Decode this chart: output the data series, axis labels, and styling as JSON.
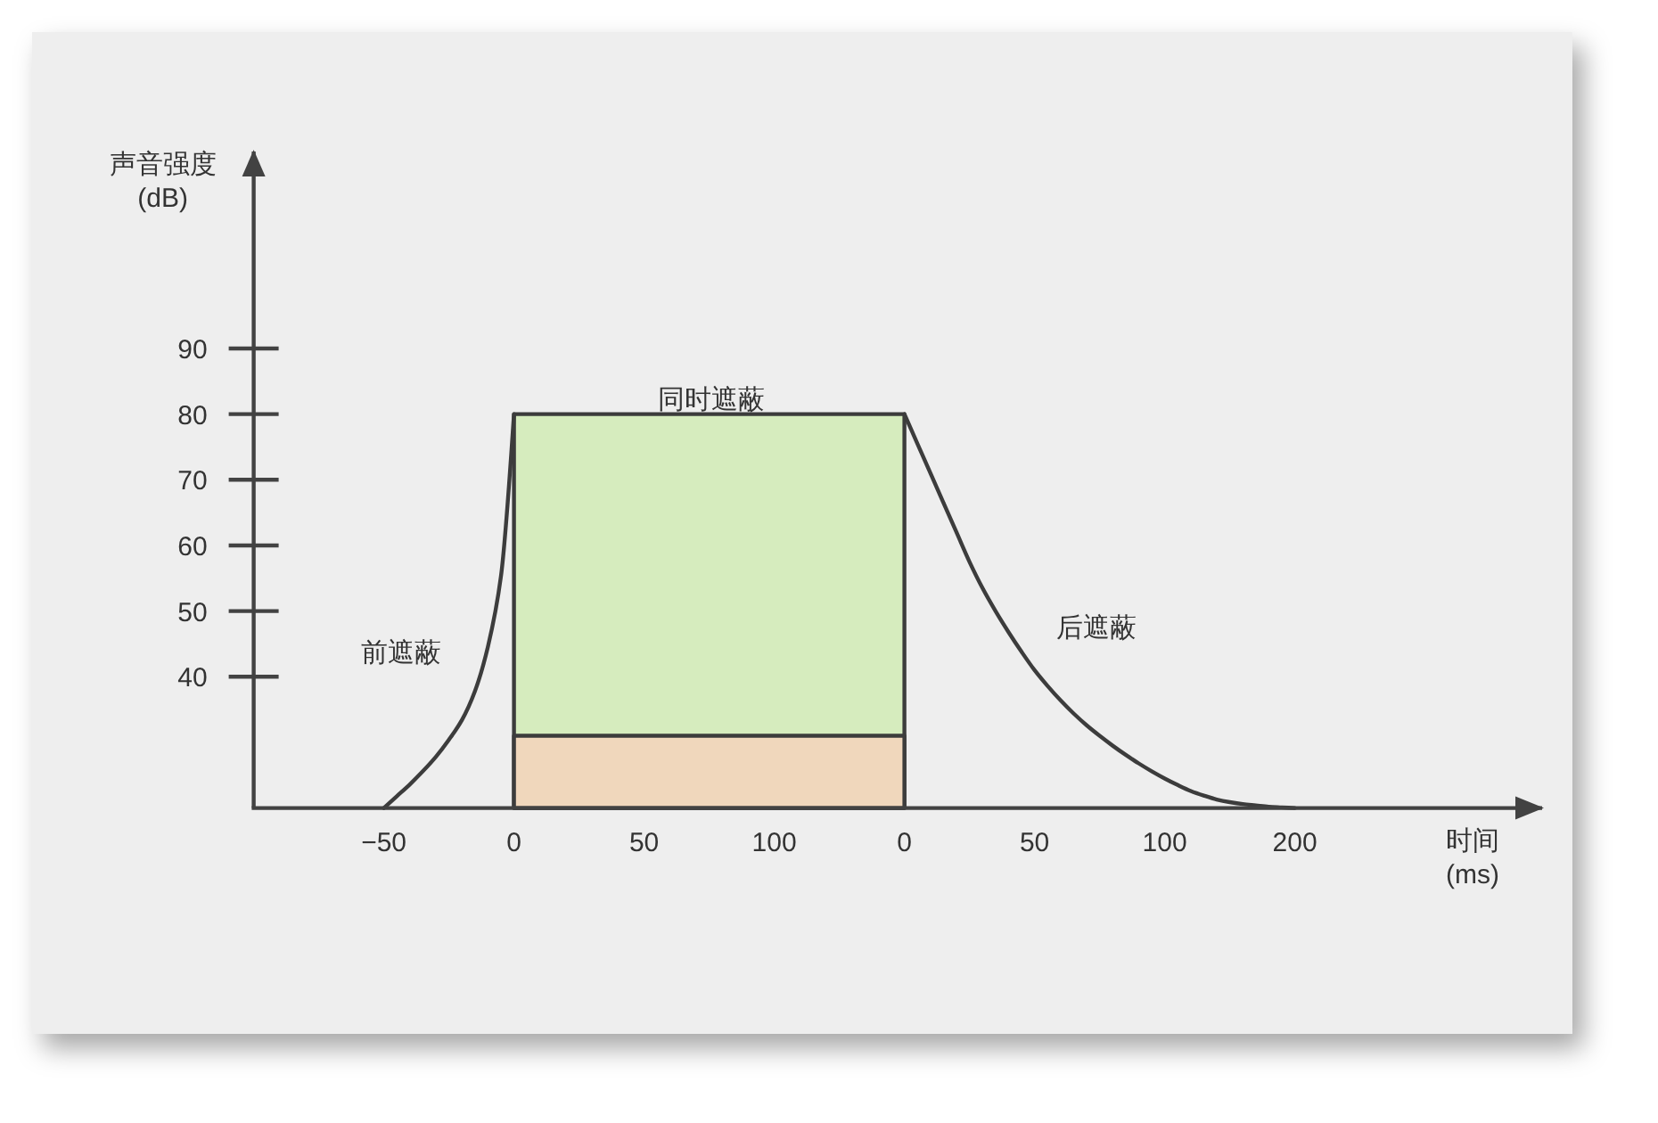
{
  "chart_data": {
    "type": "line",
    "xlabel": "时间\n(ms)",
    "ylabel": "声音强度\n(dB)",
    "ylim": [
      20,
      120
    ],
    "yticks": [
      40,
      50,
      60,
      70,
      80,
      90
    ],
    "categories": [
      null,
      null,
      null,
      null,
      null,
      null,
      null,
      null,
      null,
      null,
      "−50",
      null,
      null,
      null,
      null,
      null,
      null,
      null,
      null,
      null,
      "0",
      null,
      null,
      null,
      null,
      null,
      null,
      null,
      null,
      null,
      "50",
      null,
      null,
      null,
      null,
      null,
      null,
      null,
      null,
      null,
      "100",
      null,
      null,
      null,
      null,
      null,
      null,
      null,
      null,
      null,
      "0",
      null,
      null,
      null,
      null,
      null,
      null,
      null,
      null,
      null,
      "50",
      null,
      null,
      null,
      null,
      null,
      null,
      null,
      null,
      null,
      "100",
      null,
      null,
      null,
      null,
      null,
      null,
      null,
      null,
      null,
      "200",
      null,
      null,
      null,
      null,
      null,
      null,
      null,
      null,
      null,
      null,
      null,
      null,
      null,
      null,
      null,
      null,
      null,
      null,
      null
    ],
    "series": [
      {
        "type": "area",
        "color": "#d6ecbe",
        "values": [
          null,
          null,
          null,
          null,
          null,
          null,
          null,
          null,
          null,
          null,
          null,
          null,
          null,
          null,
          null,
          null,
          null,
          null,
          null,
          null,
          80,
          80,
          80,
          80,
          80,
          80,
          80,
          80,
          80,
          80,
          80,
          80,
          80,
          80,
          80,
          80,
          80,
          80,
          80,
          80,
          80,
          80,
          80,
          80,
          80,
          80,
          80,
          80,
          80,
          80,
          80,
          null,
          null,
          null,
          null,
          null,
          null,
          null,
          null,
          null,
          null,
          null,
          null,
          null,
          null,
          null,
          null,
          null,
          null,
          null,
          null,
          null,
          null,
          null,
          null,
          null,
          null,
          null,
          null,
          null,
          null,
          null,
          null,
          null,
          null,
          null,
          null,
          null,
          null,
          null,
          null,
          null,
          null,
          null,
          null,
          null,
          null,
          null,
          null,
          null
        ]
      },
      {
        "type": "area",
        "color": "#f0d7bc",
        "values": [
          null,
          null,
          null,
          null,
          null,
          null,
          null,
          null,
          null,
          null,
          null,
          null,
          null,
          null,
          null,
          null,
          null,
          null,
          null,
          null,
          31,
          31,
          31,
          31,
          31,
          31,
          31,
          31,
          31,
          31,
          31,
          31,
          31,
          31,
          31,
          31,
          31,
          31,
          31,
          31,
          31,
          31,
          31,
          31,
          31,
          31,
          31,
          31,
          31,
          31,
          31,
          null,
          null,
          null,
          null,
          null,
          null,
          null,
          null,
          null,
          null,
          null,
          null,
          null,
          null,
          null,
          null,
          null,
          null,
          null,
          null,
          null,
          null,
          null,
          null,
          null,
          null,
          null,
          null,
          null,
          null,
          null,
          null,
          null,
          null,
          null,
          null,
          null,
          null,
          null,
          null,
          null,
          null,
          null,
          null,
          null,
          null,
          null,
          null,
          null
        ]
      },
      {
        "color": "#3c3c3c",
        "values": [
          null,
          null,
          null,
          null,
          null,
          null,
          null,
          null,
          null,
          null,
          20,
          21.8,
          23.6,
          25.6,
          27.8,
          30.4,
          33.4,
          37.8,
          44.6,
          55.3,
          80,
          null,
          null,
          null,
          null,
          null,
          null,
          null,
          null,
          null,
          null,
          null,
          null,
          null,
          null,
          null,
          null,
          null,
          null,
          null,
          null,
          null,
          null,
          null,
          null,
          null,
          null,
          null,
          null,
          null,
          null,
          null,
          null,
          null,
          null,
          null,
          null,
          null,
          null,
          null,
          null,
          null,
          null,
          null,
          null,
          null,
          null,
          null,
          null,
          null,
          null,
          null,
          null,
          null,
          null,
          null,
          null,
          null,
          null,
          null,
          null,
          null,
          null,
          null,
          null,
          null,
          null,
          null,
          null,
          null,
          null,
          null,
          null,
          null,
          null,
          null,
          null,
          null,
          null,
          null
        ]
      },
      {
        "color": "#3c3c3c",
        "values": [
          null,
          null,
          null,
          null,
          null,
          null,
          null,
          null,
          null,
          null,
          null,
          null,
          null,
          null,
          null,
          null,
          null,
          null,
          null,
          null,
          null,
          null,
          null,
          null,
          null,
          null,
          null,
          null,
          null,
          null,
          null,
          null,
          null,
          null,
          null,
          null,
          null,
          null,
          null,
          null,
          null,
          null,
          null,
          null,
          null,
          null,
          null,
          null,
          null,
          null,
          80,
          75.5,
          71,
          66.5,
          62,
          57.5,
          53.5,
          50,
          46.8,
          43.8,
          41,
          38.6,
          36.4,
          34.4,
          32.6,
          31,
          29.5,
          28.1,
          26.8,
          25.6,
          24.5,
          23.5,
          22.6,
          21.9,
          21.3,
          20.9,
          20.6,
          20.4,
          20.2,
          20.1,
          20,
          null,
          null,
          null,
          null,
          null,
          null,
          null,
          null,
          null,
          null,
          null,
          null,
          null,
          null,
          null,
          null,
          null,
          null,
          null
        ]
      }
    ],
    "annotations": [
      "同时遮蔽",
      "前遮蔽",
      "后遮蔽"
    ]
  }
}
